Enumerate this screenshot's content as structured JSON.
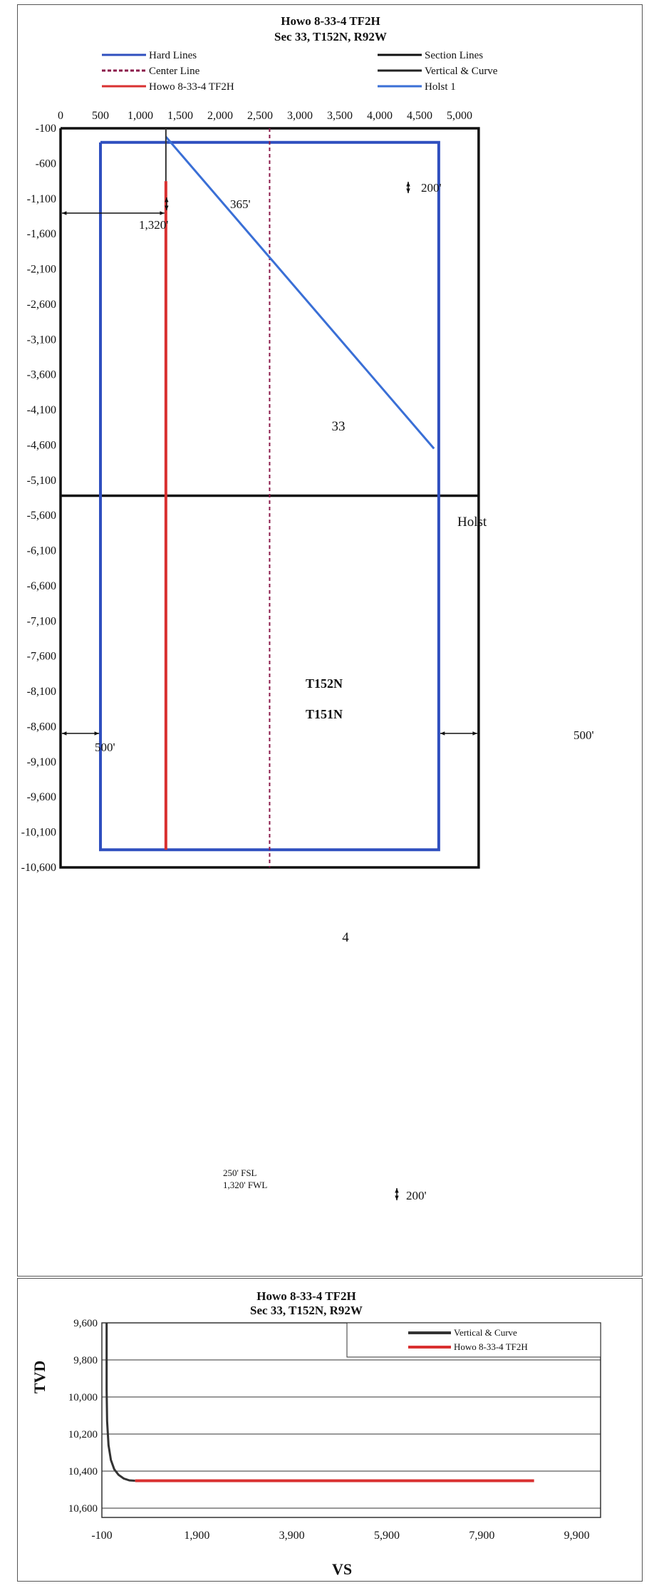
{
  "plan_chart": {
    "title_line1": "Howo 8-33-4 TF2H",
    "title_line2": "Sec 33, T152N, R92W",
    "legend": [
      {
        "label": "Hard Lines",
        "color": "#2f4fbf",
        "dash": "solid"
      },
      {
        "label": "Section Lines",
        "color": "#111111",
        "dash": "solid"
      },
      {
        "label": "Center Line",
        "color": "#8b1a4a",
        "dash": "dashed"
      },
      {
        "label": "Vertical & Curve",
        "color": "#222222",
        "dash": "solid"
      },
      {
        "label": "Howo 8-33-4 TF2H",
        "color": "#d93030",
        "dash": "solid"
      },
      {
        "label": "Holst 1",
        "color": "#3a6fd6",
        "dash": "solid"
      }
    ],
    "annotations": {
      "offset_1320": "1,320'",
      "offset_365": "365'",
      "offset_200_top": "200'",
      "offset_200_bottom": "200'",
      "offset_500_left": "500'",
      "offset_500_right": "500'",
      "section_33": "33",
      "section_4": "4",
      "township_upper": "T152N",
      "township_lower": "T151N",
      "holst_label": "Holst",
      "bhl_line1": "250' FSL",
      "bhl_line2": "1,320' FWL"
    }
  },
  "vs_chart": {
    "title_line1": "Howo 8-33-4 TF2H",
    "title_line2": "Sec 33, T152N, R92W",
    "legend": [
      {
        "label": "Vertical & Curve",
        "color": "#333333"
      },
      {
        "label": "Howo 8-33-4 TF2H",
        "color": "#d93030"
      }
    ]
  },
  "chart_data": [
    {
      "type": "line",
      "title": "Howo 8-33-4 TF2H Sec 33, T152N, R92W",
      "xlabel": "",
      "ylabel": "",
      "xlim": [
        0,
        5000
      ],
      "ylim": [
        -10600,
        -100
      ],
      "x_ticks": [
        "0",
        "500",
        "1,000",
        "1,500",
        "2,000",
        "2,500",
        "3,000",
        "3,500",
        "4,000",
        "4,500",
        "5,000"
      ],
      "y_ticks": [
        "-100",
        "-600",
        "-1,100",
        "-1,600",
        "-2,100",
        "-2,600",
        "-3,100",
        "-3,600",
        "-4,100",
        "-4,600",
        "-5,100",
        "-5,600",
        "-6,100",
        "-6,600",
        "-7,100",
        "-7,600",
        "-8,100",
        "-8,600",
        "-9,100",
        "-9,600",
        "-10,100",
        "-10,600"
      ],
      "grid": false,
      "legend_position": "top",
      "series": [
        {
          "name": "Hard Lines",
          "x": [
            500,
            4740,
            4740,
            500,
            500
          ],
          "y": [
            -300,
            -300,
            -10350,
            -10350,
            -300
          ]
        },
        {
          "name": "Section Lines",
          "x": [
            0,
            5240,
            5240,
            0,
            0
          ],
          "y": [
            -100,
            -100,
            -10600,
            -10600,
            -100
          ]
        },
        {
          "name": "Section Lines",
          "x": [
            0,
            5240
          ],
          "y": [
            -5320,
            -5320
          ]
        },
        {
          "name": "Center Line",
          "x": [
            2620,
            2620
          ],
          "y": [
            -100,
            -10600
          ]
        },
        {
          "name": "Vertical & Curve",
          "x": [
            1320,
            1320,
            1320
          ],
          "y": [
            -100,
            -500,
            -850
          ]
        },
        {
          "name": "Howo 8-33-4 TF2H",
          "x": [
            1320,
            1320
          ],
          "y": [
            -850,
            -10350
          ]
        },
        {
          "name": "Holst 1",
          "x": [
            1320,
            4680
          ],
          "y": [
            -220,
            -4650
          ]
        }
      ]
    },
    {
      "type": "line",
      "title": "Howo 8-33-4 TF2H Sec 33, T152N, R92W",
      "xlabel": "VS",
      "ylabel": "TVD",
      "xlim": [
        -100,
        10400
      ],
      "ylim": [
        10650,
        9600
      ],
      "x_ticks": [
        "-100",
        "1,900",
        "3,900",
        "5,900",
        "7,900",
        "9,900"
      ],
      "y_ticks": [
        "9,600",
        "9,800",
        "10,000",
        "10,200",
        "10,400",
        "10,600"
      ],
      "grid": true,
      "legend_position": "top-right",
      "series": [
        {
          "name": "Vertical & Curve",
          "x": [
            0,
            0,
            10,
            40,
            90,
            160,
            250,
            360,
            480,
            600
          ],
          "y": [
            9600,
            9960,
            10130,
            10260,
            10340,
            10390,
            10420,
            10440,
            10450,
            10452
          ]
        },
        {
          "name": "Howo 8-33-4 TF2H",
          "x": [
            600,
            9000
          ],
          "y": [
            10452,
            10452
          ]
        }
      ]
    }
  ]
}
